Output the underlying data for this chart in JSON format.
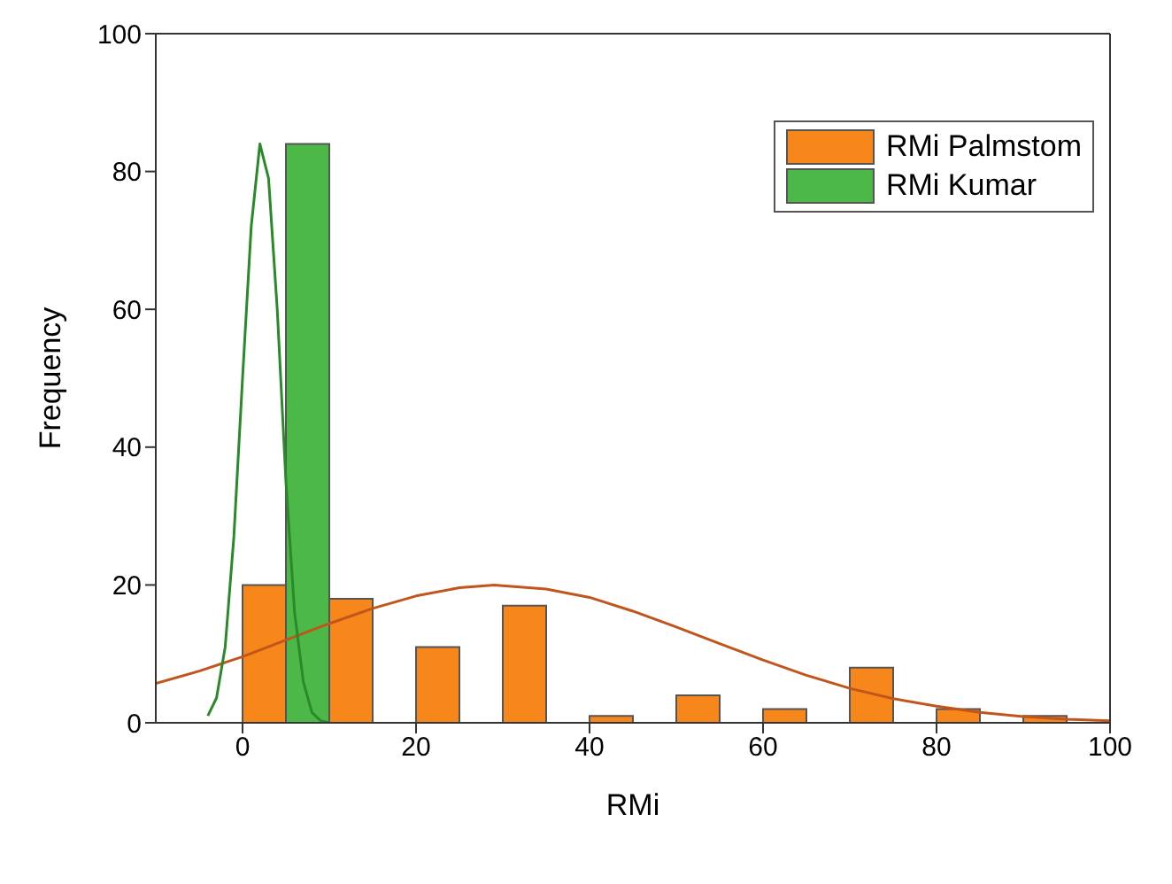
{
  "chart_data": {
    "type": "histogram",
    "xlabel": "RMi",
    "ylabel": "Frequency",
    "xlim": [
      -10,
      100
    ],
    "ylim": [
      0,
      100
    ],
    "xticks": [
      0,
      20,
      40,
      60,
      80,
      100
    ],
    "yticks": [
      0,
      20,
      40,
      60,
      80,
      100
    ],
    "legend": "top right",
    "grid": false,
    "series": [
      {
        "name": "RMi Palmstom",
        "color": "#f7861b",
        "bins": [
          0,
          5,
          10,
          15,
          20,
          25,
          30,
          35,
          40,
          45,
          50,
          55,
          60,
          65,
          70,
          75,
          80,
          85,
          90,
          95
        ],
        "values": [
          20,
          0,
          18,
          0,
          11,
          0,
          17,
          0,
          1,
          0,
          4,
          0,
          2,
          0,
          8,
          0,
          2,
          0,
          1
        ]
      },
      {
        "name": "RMi Kumar",
        "color": "#4cb848",
        "bins": [
          5,
          10
        ],
        "values": [
          84
        ]
      },
      {
        "type": "line",
        "color": "#c0561c",
        "marker": "none",
        "x": [
          -10,
          -5,
          0,
          5,
          10,
          15,
          20,
          25,
          29,
          35,
          40,
          45,
          50,
          55,
          60,
          65,
          70,
          75,
          80,
          85,
          90,
          95,
          100
        ],
        "values": [
          5.7,
          7.5,
          9.6,
          12,
          14.4,
          16.6,
          18.4,
          19.6,
          20,
          19.4,
          18.2,
          16.2,
          13.9,
          11.5,
          9.1,
          6.9,
          5,
          3.5,
          2.4,
          1.5,
          0.9,
          0.5,
          0.3
        ]
      },
      {
        "type": "line",
        "color": "#2a8a2a",
        "marker": "none",
        "x": [
          -4,
          -3,
          -2,
          -1,
          0,
          1,
          2,
          3,
          4,
          5,
          6,
          7,
          8,
          9,
          10
        ],
        "values": [
          1,
          3.6,
          11,
          27,
          50,
          72,
          84,
          79,
          60,
          35,
          16,
          6,
          1.5,
          0.3,
          0
        ]
      }
    ]
  }
}
